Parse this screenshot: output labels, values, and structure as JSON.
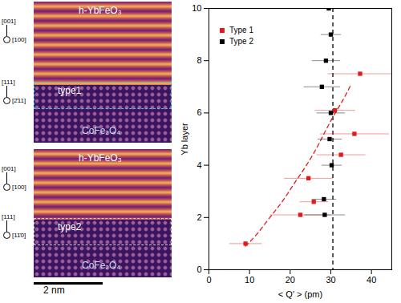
{
  "chart_data": {
    "type": "scatter",
    "xlabel": "< Q' > (pm)",
    "ylabel": "Yb layer",
    "xlim": [
      0,
      45
    ],
    "xticks": [
      0,
      10,
      20,
      30,
      40
    ],
    "ylim": [
      0,
      10
    ],
    "yticks": [
      0,
      2,
      4,
      6,
      8,
      10
    ],
    "legend": "upper left",
    "series": [
      {
        "name": "Type 1",
        "color": "#e31a1c",
        "marker": "square",
        "x": [
          9,
          22.5,
          25.8,
          24.5,
          32.5,
          35.8,
          31,
          37.2
        ],
        "y": [
          1,
          2.1,
          2.6,
          3.5,
          4.4,
          5.2,
          6.1,
          7.5
        ],
        "x_error": [
          4,
          7.5,
          3.5,
          6,
          6,
          8.5,
          5,
          8
        ]
      },
      {
        "name": "Type 2",
        "color": "#000000",
        "marker": "square",
        "x": [
          28.5,
          28.3,
          30.2,
          29.7,
          30,
          27.8,
          28.8,
          30,
          29.5
        ],
        "y": [
          2.1,
          2.7,
          4.0,
          5.0,
          6.0,
          7.0,
          8.0,
          9.0,
          10.0
        ],
        "x_error": [
          5,
          3,
          2.5,
          3,
          3.5,
          4.5,
          3.5,
          2.5,
          2.5
        ]
      }
    ],
    "fit_curve": {
      "color": "#e31a1c",
      "line_style": "dashed",
      "x": [
        9,
        12,
        15,
        18,
        21,
        24,
        27,
        30,
        33,
        35
      ],
      "y": [
        0.9,
        1.4,
        2.0,
        2.6,
        3.3,
        4.0,
        4.8,
        5.7,
        6.5,
        7.1
      ]
    },
    "reference_line": {
      "x": 30.5,
      "color": "#000000",
      "line_style": "dashed"
    }
  },
  "micrographs": {
    "scale_bar": "2 nm",
    "panels": [
      {
        "top_label": "h-YbFeO₃",
        "interface_label": "type1",
        "bottom_label": "CoFe₂O₄",
        "top_axes": [
          "[001]",
          "[100]"
        ],
        "bottom_axes": [
          "[111]",
          "[2̄11]"
        ],
        "box_color": "#39c6e6"
      },
      {
        "top_label": "h-YbFeO₃",
        "interface_label": "type2",
        "bottom_label": "CoFe₂O₄",
        "top_axes": [
          "[001]",
          "[100]"
        ],
        "bottom_axes": [
          "[111]",
          "[11̄0]"
        ],
        "box_color": "#cccccc"
      }
    ]
  }
}
